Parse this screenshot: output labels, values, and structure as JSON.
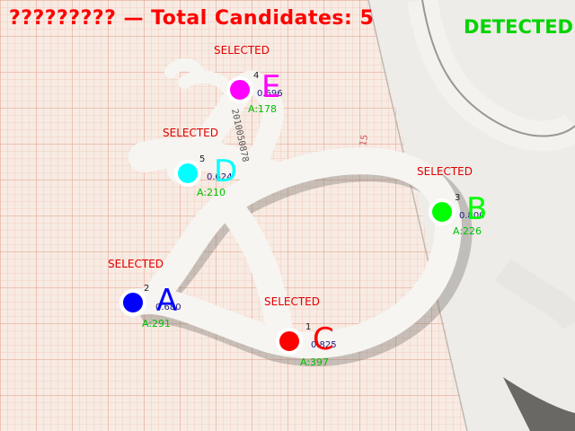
{
  "title": "????????? — Total Candidates: 5",
  "status": "DETECTED",
  "colors": {
    "title": "#ff0000",
    "status": "#00d400",
    "selected": "#e00000",
    "area": "#00c000"
  },
  "paper": {
    "serial": "2010050878",
    "ruler_mark": "15"
  },
  "candidates": [
    {
      "id": "A",
      "rank": "2",
      "selected": "SELECTED",
      "score": "0.680",
      "area": "A:291",
      "color": "#0000ff"
    },
    {
      "id": "B",
      "rank": "3",
      "selected": "SELECTED",
      "score": "0.800",
      "area": "A:226",
      "color": "#00ff00"
    },
    {
      "id": "C",
      "rank": "1",
      "selected": "SELECTED",
      "score": "0.825",
      "area": "A:397",
      "color": "#ff0000"
    },
    {
      "id": "D",
      "rank": "5",
      "selected": "SELECTED",
      "score": "0.624",
      "area": "A:210",
      "color": "#00ffff"
    },
    {
      "id": "E",
      "rank": "4",
      "selected": "SELECTED",
      "score": "0.696",
      "area": "A:178",
      "color": "#ff00ff"
    }
  ]
}
